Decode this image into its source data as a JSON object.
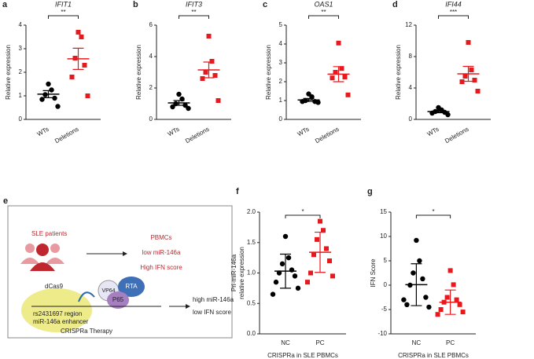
{
  "chart_data": [
    {
      "type": "dotplot",
      "panel": "a",
      "title": "IFIT1",
      "ylabel": "Relative expression",
      "categories": [
        "WTs",
        "Deletions"
      ],
      "colors": [
        "#000000",
        "#e8191c"
      ],
      "markers": [
        "circle",
        "square"
      ],
      "groups": [
        [
          1.5,
          1.25,
          1.05,
          0.9,
          0.85,
          0.55
        ],
        [
          3.7,
          3.5,
          2.6,
          2.3,
          1.8,
          1.0
        ]
      ],
      "mean": [
        1.07,
        2.57
      ],
      "error": [
        0.15,
        0.45
      ],
      "significance": "**",
      "ylim": [
        0,
        4
      ],
      "yticks": [
        0,
        1,
        2,
        3,
        4
      ]
    },
    {
      "type": "dotplot",
      "panel": "b",
      "title": "IFIT3",
      "ylabel": "Relative expression",
      "categories": [
        "WTs",
        "Deletions"
      ],
      "colors": [
        "#000000",
        "#e8191c"
      ],
      "markers": [
        "circle",
        "square"
      ],
      "groups": [
        [
          1.6,
          1.3,
          1.0,
          0.9,
          0.8,
          0.7
        ],
        [
          5.3,
          3.7,
          3.0,
          2.8,
          2.6,
          1.2
        ]
      ],
      "mean": [
        1.05,
        3.15
      ],
      "error": [
        0.15,
        0.5
      ],
      "significance": "**",
      "ylim": [
        0,
        6
      ],
      "yticks": [
        0,
        2,
        4,
        6
      ]
    },
    {
      "type": "dotplot",
      "panel": "c",
      "title": "OAS1",
      "ylabel": "Relative expression",
      "categories": [
        "WTs",
        "Deletions"
      ],
      "colors": [
        "#000000",
        "#e8191c"
      ],
      "markers": [
        "circle",
        "square"
      ],
      "groups": [
        [
          1.35,
          1.2,
          1.0,
          0.95,
          0.95,
          0.9
        ],
        [
          4.05,
          2.7,
          2.5,
          2.25,
          2.2,
          1.3
        ]
      ],
      "mean": [
        1.03,
        2.4
      ],
      "error": [
        0.08,
        0.4
      ],
      "significance": "**",
      "ylim": [
        0,
        5
      ],
      "yticks": [
        0,
        1,
        2,
        3,
        4,
        5
      ]
    },
    {
      "type": "dotplot",
      "panel": "d",
      "title": "IFI44",
      "ylabel": "Relative expression",
      "categories": [
        "WTs",
        "Deletions"
      ],
      "colors": [
        "#000000",
        "#e8191c"
      ],
      "markers": [
        "circle",
        "square"
      ],
      "groups": [
        [
          1.5,
          1.2,
          1.0,
          0.9,
          0.8,
          0.6
        ],
        [
          9.8,
          6.3,
          5.5,
          5.0,
          4.8,
          3.6
        ]
      ],
      "mean": [
        1.0,
        5.8
      ],
      "error": [
        0.15,
        0.95
      ],
      "significance": "***",
      "ylim": [
        0,
        12
      ],
      "yticks": [
        0,
        4,
        8,
        12
      ]
    },
    {
      "type": "dotplot",
      "panel": "f",
      "ylabel": [
        "Pri-miR-146a",
        "relative expression"
      ],
      "xlabel": "CRISPRa in SLE PBMCs",
      "categories": [
        "NC",
        "PC"
      ],
      "colors": [
        "#000000",
        "#e8191c"
      ],
      "markers": [
        "circle",
        "square"
      ],
      "groups": [
        [
          1.6,
          1.25,
          1.15,
          1.05,
          1.0,
          0.95,
          0.85,
          0.75,
          0.65
        ],
        [
          1.85,
          1.7,
          1.55,
          1.4,
          1.3,
          1.2,
          1.0,
          0.95,
          0.85
        ]
      ],
      "mean": [
        1.03,
        1.34
      ],
      "error": [
        0.28,
        0.33
      ],
      "significance": "*",
      "ylim": [
        0,
        2
      ],
      "yticks": [
        {
          "value": 0,
          "label": "0.0"
        },
        0.5,
        {
          "value": 1,
          "label": "1.0"
        },
        1.5,
        {
          "value": 2,
          "label": "2.0"
        }
      ]
    },
    {
      "type": "dotplot",
      "panel": "g",
      "ylabel": "IFN Score",
      "xlabel": "CRISPRa in SLE PBMCs",
      "categories": [
        "NC",
        "PC"
      ],
      "colors": [
        "#000000",
        "#e8191c"
      ],
      "markers": [
        "circle",
        "square"
      ],
      "groups": [
        [
          9.2,
          5.0,
          2.5,
          1.3,
          0.0,
          -2.5,
          -4.0,
          -4.5,
          -3.0
        ],
        [
          3.0,
          0.1,
          -2.5,
          -3.0,
          -3.5,
          -4.0,
          -5.0,
          -5.5,
          -6.0
        ]
      ],
      "mean": [
        0.1,
        -3.5
      ],
      "error": [
        4.3,
        2.5
      ],
      "significance": "*",
      "ylim": [
        -10,
        15
      ],
      "yticks": [
        -10,
        -5,
        0,
        5,
        10,
        15
      ]
    }
  ],
  "diagram": {
    "panel": "e",
    "patients": "SLE patients",
    "pbmcs": "PBMCs",
    "low_mir": "low miR-146a",
    "high_ifn": "High IFN score",
    "dcas9": "dCas9",
    "vp64": "VP64",
    "rta": "RTA",
    "p65": "P65",
    "region": "rs2431697 region",
    "enhancer": "miR-146a enhancer",
    "high_mir": "high miR-146a",
    "low_ifn": "low IFN score",
    "therapy": "CRISPRa Therapy"
  }
}
